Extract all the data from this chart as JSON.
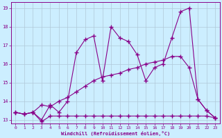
{
  "xlabel": "Windchill (Refroidissement éolien,°C)",
  "bg_color": "#cceeff",
  "line_color": "#880088",
  "grid_color": "#b0c8d8",
  "xlim": [
    -0.5,
    23.5
  ],
  "ylim": [
    12.8,
    19.3
  ],
  "xticks": [
    0,
    1,
    2,
    3,
    4,
    5,
    6,
    7,
    8,
    9,
    10,
    11,
    12,
    13,
    14,
    15,
    16,
    17,
    18,
    19,
    20,
    21,
    22,
    23
  ],
  "yticks": [
    13,
    14,
    15,
    16,
    17,
    18,
    19
  ],
  "line1_x": [
    0,
    1,
    2,
    3,
    4,
    5,
    6,
    7,
    8,
    9,
    10,
    11,
    12,
    13,
    14,
    15,
    16,
    17,
    18,
    19,
    20,
    21,
    22,
    23
  ],
  "line1_y": [
    13.4,
    13.3,
    13.4,
    12.9,
    13.2,
    13.2,
    13.2,
    13.2,
    13.2,
    13.2,
    13.2,
    13.2,
    13.2,
    13.2,
    13.2,
    13.2,
    13.2,
    13.2,
    13.2,
    13.2,
    13.2,
    13.2,
    13.2,
    13.1
  ],
  "line2_x": [
    0,
    1,
    2,
    3,
    4,
    5,
    6,
    7,
    8,
    9,
    10,
    11,
    12,
    13,
    14,
    15,
    16,
    17,
    18,
    19,
    20,
    21,
    22,
    23
  ],
  "line2_y": [
    13.4,
    13.3,
    13.4,
    13.8,
    13.7,
    14.0,
    14.2,
    14.5,
    14.8,
    15.1,
    15.3,
    15.4,
    15.5,
    15.7,
    15.8,
    16.0,
    16.1,
    16.2,
    16.4,
    16.4,
    15.8,
    14.1,
    13.5,
    13.1
  ],
  "line3_x": [
    0,
    1,
    2,
    3,
    4,
    5,
    6,
    7,
    8,
    9,
    10,
    11,
    12,
    13,
    14,
    15,
    16,
    17,
    18,
    19,
    20,
    21,
    22,
    23
  ],
  "line3_y": [
    13.4,
    13.3,
    13.4,
    13.0,
    13.8,
    13.4,
    14.0,
    16.6,
    17.3,
    17.5,
    15.1,
    18.0,
    17.4,
    17.2,
    16.5,
    15.1,
    15.8,
    16.0,
    17.4,
    18.8,
    19.0,
    14.1,
    13.5,
    13.1
  ]
}
